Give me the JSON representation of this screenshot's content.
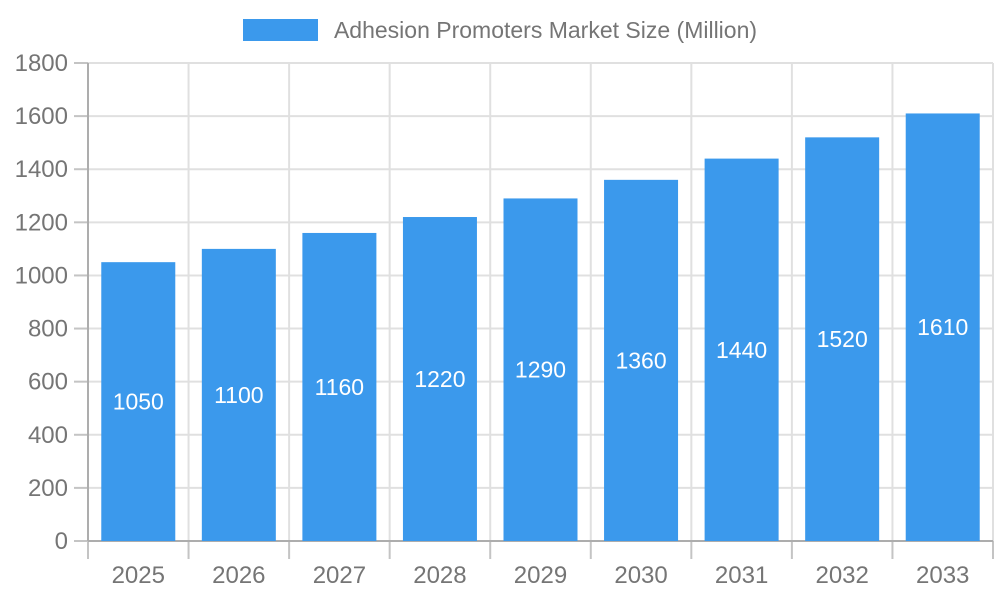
{
  "legend": {
    "label": "Adhesion Promoters Market Size (Million)"
  },
  "chart_data": {
    "type": "bar",
    "title": "Adhesion Promoters Market Size (Million)",
    "categories": [
      "2025",
      "2026",
      "2027",
      "2028",
      "2029",
      "2030",
      "2031",
      "2032",
      "2033"
    ],
    "values": [
      1050,
      1100,
      1160,
      1220,
      1290,
      1360,
      1440,
      1520,
      1610
    ],
    "xlabel": "",
    "ylabel": "",
    "ylim": [
      0,
      1800
    ],
    "ytick_step": 200,
    "yticks": [
      0,
      200,
      400,
      600,
      800,
      1000,
      1200,
      1400,
      1600,
      1800
    ],
    "grid": true,
    "legend_position": "top-center",
    "bar_color": "#3B99EC",
    "value_label_color": "#FFFFFF",
    "value_label_position": "inside-center",
    "axis_text_color": "#757575"
  }
}
